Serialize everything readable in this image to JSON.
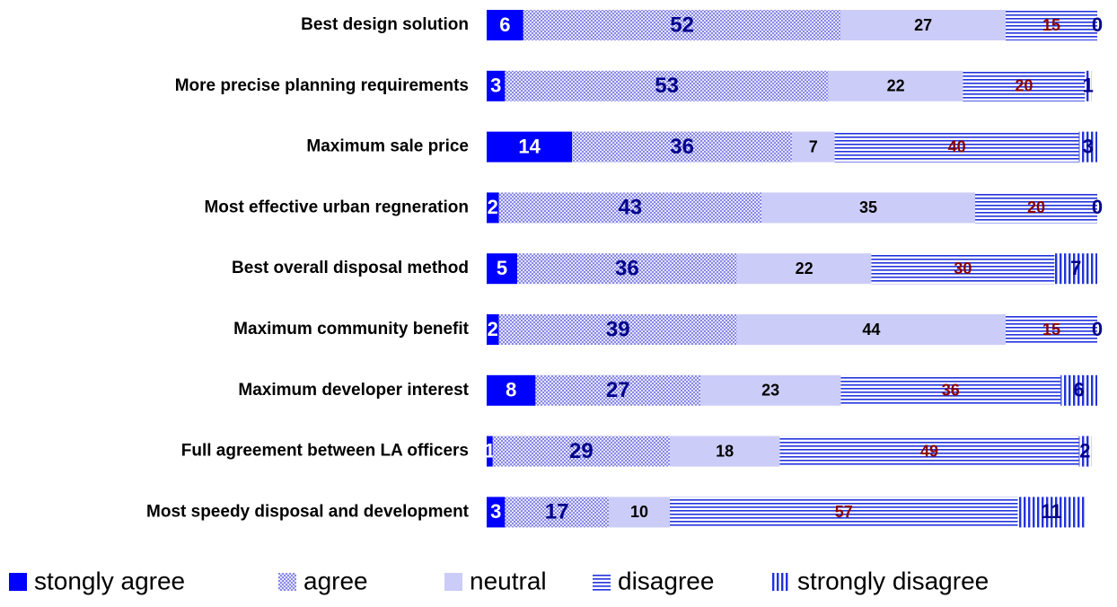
{
  "chart_data": {
    "type": "stacked-bar-horizontal",
    "categories": [
      "Best design solution",
      "More precise planning requirements",
      "Maximum sale price",
      "Most effective urban regneration",
      "Best overall disposal method",
      "Maximum community benefit",
      "Maximum developer interest",
      "Full agreement between LA officers",
      "Most speedy disposal and development"
    ],
    "series": [
      {
        "name": "stongly agree",
        "color": "#0000ff",
        "values": [
          6,
          3,
          14,
          2,
          5,
          2,
          8,
          1,
          3
        ]
      },
      {
        "name": "agree",
        "color": "#9999ee",
        "values": [
          52,
          53,
          36,
          43,
          36,
          39,
          27,
          29,
          17
        ]
      },
      {
        "name": "neutral",
        "color": "#ccccf8",
        "values": [
          27,
          22,
          7,
          35,
          22,
          44,
          23,
          18,
          10
        ]
      },
      {
        "name": "disagree",
        "color": "#2233dd",
        "values": [
          15,
          20,
          40,
          20,
          30,
          15,
          36,
          49,
          57
        ]
      },
      {
        "name": "strongly disagree",
        "color": "#2233dd",
        "values": [
          0,
          1,
          3,
          0,
          7,
          0,
          6,
          2,
          11
        ]
      }
    ],
    "legend": "bottom"
  }
}
